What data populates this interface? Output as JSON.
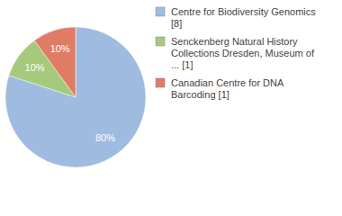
{
  "chart_data": {
    "type": "pie",
    "categories": [
      "Centre for Biodiversity Genomics [8]",
      "Senckenberg Natural History Collections Dresden, Museum of ... [1]",
      "Canadian Centre for DNA Barcoding [1]"
    ],
    "values": [
      80,
      10,
      10
    ],
    "value_labels": [
      "80%",
      "10%",
      "10%"
    ],
    "colors": [
      "#a0bbe0",
      "#a6c97c",
      "#e07c64"
    ],
    "data_labels": true,
    "legend": "top-right"
  }
}
